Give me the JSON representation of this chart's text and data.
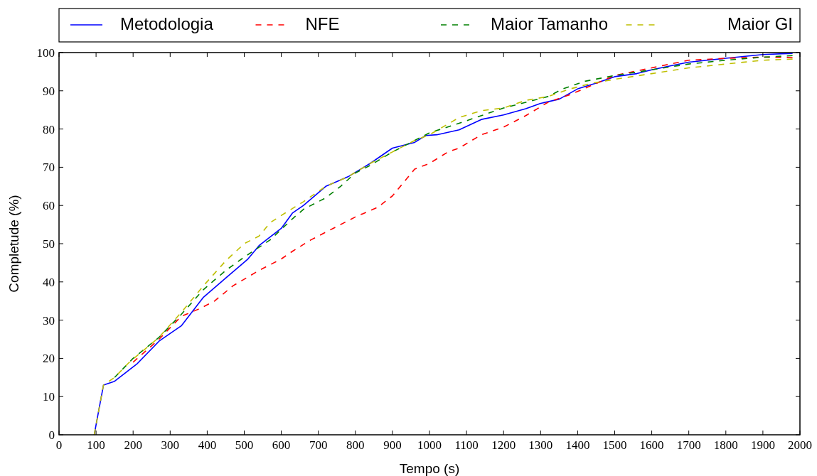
{
  "chart_data": {
    "type": "line",
    "xlabel": "Tempo (s)",
    "ylabel": "Completude (%)",
    "xlim": [
      0,
      2000
    ],
    "ylim": [
      0,
      100
    ],
    "xticks": [
      0,
      100,
      200,
      300,
      400,
      500,
      600,
      700,
      800,
      900,
      1000,
      1100,
      1200,
      1300,
      1400,
      1500,
      1600,
      1700,
      1800,
      1900,
      2000
    ],
    "yticks": [
      0,
      10,
      20,
      30,
      40,
      50,
      60,
      70,
      80,
      90,
      100
    ],
    "grid": false,
    "legend": "top",
    "marker": "none",
    "series": [
      {
        "name": "Metodologia",
        "color": "#0000ff",
        "line_style": "solid",
        "x": [
          95,
          120,
          150,
          210,
          270,
          330,
          390,
          450,
          510,
          540,
          600,
          630,
          660,
          720,
          780,
          840,
          900,
          960,
          990,
          1020,
          1080,
          1140,
          1200,
          1260,
          1300,
          1350,
          1400,
          1450,
          1500,
          1560,
          1600,
          1650,
          1700,
          1750,
          1800,
          1900,
          1980
        ],
        "values": [
          0,
          13,
          14,
          18.5,
          24.5,
          28.5,
          36,
          41,
          46,
          49.5,
          54,
          58,
          60,
          65,
          67.5,
          71,
          75,
          76.5,
          78.3,
          78.5,
          79.8,
          82.5,
          83.7,
          85.3,
          86.7,
          87.8,
          90.5,
          92,
          93.7,
          94.5,
          95.5,
          96.5,
          97.5,
          98,
          98.5,
          99.5,
          99.8
        ]
      },
      {
        "name": "NFE",
        "color": "#ff0000",
        "line_style": "dashed",
        "x": [
          200,
          270,
          330,
          380,
          420,
          470,
          540,
          600,
          630,
          680,
          740,
          800,
          860,
          900,
          930,
          960,
          1000,
          1050,
          1080,
          1140,
          1200,
          1260,
          1320,
          1380,
          1440,
          1500,
          1600,
          1700,
          1800,
          1900,
          1980
        ],
        "values": [
          19,
          25,
          31,
          33,
          35,
          39,
          43,
          46,
          48,
          51,
          54,
          57,
          59.5,
          62.5,
          66,
          69.5,
          71,
          74,
          75,
          78.5,
          80.5,
          83.5,
          87,
          89,
          91.5,
          94,
          96,
          98,
          98.5,
          98.8,
          98.7
        ]
      },
      {
        "name": "Maior Tamanho",
        "color": "#008000",
        "line_style": "dashed",
        "x": [
          150,
          200,
          270,
          330,
          390,
          450,
          500,
          570,
          630,
          660,
          720,
          760,
          800,
          840,
          900,
          960,
          1000,
          1080,
          1140,
          1200,
          1260,
          1320,
          1360,
          1420,
          1500,
          1600,
          1700,
          1800,
          1900,
          1980
        ],
        "values": [
          15,
          20,
          25.5,
          31.5,
          38,
          43,
          46.5,
          51,
          56.5,
          59,
          62,
          65,
          68.5,
          70.5,
          74,
          77,
          79,
          81.5,
          83.5,
          85.5,
          87,
          88.5,
          90.5,
          92.5,
          94,
          95.5,
          97,
          98,
          98.8,
          99.2
        ]
      },
      {
        "name": "Maior GI",
        "color": "#bfbf00",
        "line_style": "dashed",
        "x": [
          95,
          120,
          150,
          190,
          270,
          330,
          390,
          450,
          500,
          540,
          570,
          610,
          660,
          720,
          780,
          840,
          900,
          960,
          1000,
          1080,
          1140,
          1200,
          1260,
          1320,
          1380,
          1440,
          1500,
          1600,
          1700,
          1800,
          1900,
          1980
        ],
        "values": [
          0,
          13,
          15,
          19,
          25.5,
          32,
          39,
          45.5,
          50,
          52,
          55.5,
          58,
          61,
          65,
          67.5,
          71,
          74,
          77,
          78.5,
          83,
          84.8,
          85.5,
          87.5,
          88.5,
          90.5,
          92,
          93,
          94.5,
          96,
          97,
          98,
          98.3
        ]
      }
    ]
  }
}
